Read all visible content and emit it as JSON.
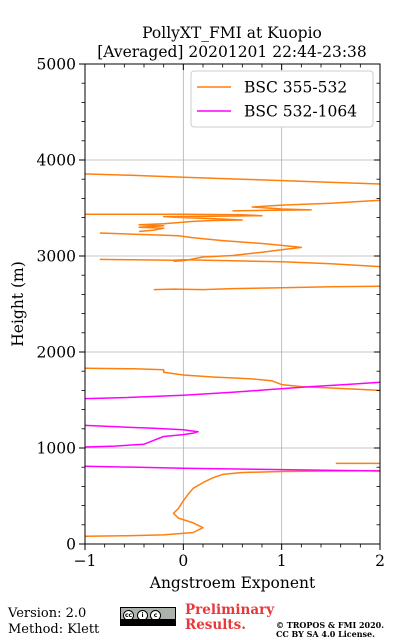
{
  "title": {
    "line1": "PollyXT_FMI at Kuopio",
    "line2": "[Averaged] 20201201 22:44-23:38"
  },
  "footer": {
    "version": "Version: 2.0",
    "method": "Method: Klett",
    "preliminary_line1": "Preliminary",
    "preliminary_line2": "Results.",
    "copyright_line1": "© TROPOS & FMI 2020.",
    "copyright_line2": "CC BY SA 4.0 License.",
    "badge_icon": "cc-by-sa-license-icon"
  },
  "colors": {
    "bsc_355_532": "#ff7f0e",
    "bsc_532_1064": "#ff00ff",
    "grid": "#b0b0b0",
    "preliminary": "#e8383b"
  },
  "chart_data": {
    "type": "line",
    "xlabel": "Angstroem Exponent",
    "ylabel": "Height (m)",
    "xlim": [
      -1,
      2
    ],
    "ylim": [
      0,
      5000
    ],
    "xticks": [
      -1,
      0,
      1,
      2
    ],
    "yticks": [
      0,
      1000,
      2000,
      3000,
      4000,
      5000
    ],
    "xtick_labels": [
      "−1",
      "0",
      "1",
      "2"
    ],
    "ytick_labels": [
      "0",
      "1000",
      "2000",
      "3000",
      "4000",
      "5000"
    ],
    "grid": true,
    "legend_position": "top-right",
    "series": [
      {
        "name": "BSC 355-532",
        "color": "#ff7f0e",
        "segments": [
          [
            [
              -1.0,
              80
            ],
            [
              -0.6,
              85
            ],
            [
              -0.2,
              95
            ],
            [
              0.1,
              120
            ],
            [
              0.2,
              170
            ],
            [
              0.1,
              220
            ],
            [
              -0.05,
              270
            ],
            [
              -0.1,
              320
            ],
            [
              -0.05,
              370
            ],
            [
              0.0,
              450
            ],
            [
              0.05,
              520
            ],
            [
              0.1,
              580
            ],
            [
              0.2,
              640
            ],
            [
              0.3,
              690
            ],
            [
              0.4,
              725
            ],
            [
              0.6,
              745
            ],
            [
              1.0,
              755
            ],
            [
              1.5,
              760
            ],
            [
              2.0,
              765
            ]
          ],
          [
            [
              1.55,
              840
            ],
            [
              2.0,
              840
            ]
          ],
          [
            [
              2.0,
              1600
            ],
            [
              1.8,
              1610
            ],
            [
              1.2,
              1640
            ],
            [
              1.0,
              1660
            ],
            [
              0.9,
              1700
            ],
            [
              0.7,
              1720
            ],
            [
              0.3,
              1740
            ],
            [
              0.0,
              1760
            ],
            [
              -0.2,
              1790
            ],
            [
              -0.2,
              1815
            ],
            [
              -0.5,
              1825
            ],
            [
              -1.0,
              1830
            ]
          ],
          [
            [
              -0.3,
              2650
            ],
            [
              -0.1,
              2655
            ],
            [
              0.2,
              2650
            ],
            [
              0.35,
              2655
            ],
            [
              0.5,
              2660
            ],
            [
              1.0,
              2670
            ],
            [
              1.5,
              2680
            ],
            [
              2.0,
              2685
            ]
          ],
          [
            [
              2.0,
              2890
            ],
            [
              1.5,
              2920
            ],
            [
              1.0,
              2940
            ],
            [
              0.5,
              2950
            ],
            [
              0.0,
              2960
            ],
            [
              -0.1,
              2955
            ],
            [
              -0.5,
              2960
            ],
            [
              -0.85,
              2965
            ]
          ],
          [
            [
              -0.1,
              2945
            ],
            [
              0.0,
              2950
            ],
            [
              0.2,
              2990
            ],
            [
              0.5,
              3005
            ],
            [
              0.8,
              3040
            ],
            [
              1.0,
              3065
            ],
            [
              1.2,
              3090
            ],
            [
              1.0,
              3110
            ],
            [
              0.8,
              3130
            ],
            [
              0.4,
              3160
            ],
            [
              0.1,
              3190
            ],
            [
              -0.05,
              3210
            ],
            [
              -0.3,
              3220
            ],
            [
              -0.6,
              3230
            ],
            [
              -0.85,
              3240
            ]
          ],
          [
            [
              -0.45,
              3255
            ],
            [
              -0.3,
              3270
            ],
            [
              -0.2,
              3290
            ],
            [
              -0.45,
              3300
            ],
            [
              -0.2,
              3315
            ],
            [
              -0.45,
              3325
            ],
            [
              -0.2,
              3335
            ],
            [
              0.1,
              3360
            ],
            [
              0.3,
              3370
            ],
            [
              0.6,
              3375
            ],
            [
              0.3,
              3390
            ],
            [
              0.0,
              3400
            ],
            [
              -0.2,
              3410
            ],
            [
              0.3,
              3415
            ],
            [
              0.8,
              3420
            ],
            [
              0.6,
              3430
            ],
            [
              0.0,
              3435
            ],
            [
              -0.6,
              3435
            ],
            [
              -1.0,
              3435
            ]
          ],
          [
            [
              0.5,
              3470
            ],
            [
              0.8,
              3475
            ],
            [
              1.3,
              3480
            ],
            [
              1.0,
              3490
            ],
            [
              0.7,
              3510
            ],
            [
              1.0,
              3530
            ],
            [
              1.5,
              3550
            ],
            [
              2.0,
              3580
            ]
          ],
          [
            [
              2.0,
              3750
            ],
            [
              1.7,
              3760
            ],
            [
              1.3,
              3775
            ],
            [
              0.6,
              3800
            ],
            [
              0.0,
              3820
            ],
            [
              -0.5,
              3840
            ],
            [
              -1.0,
              3855
            ]
          ]
        ]
      },
      {
        "name": "BSC 532-1064",
        "color": "#ff00ff",
        "segments": [
          [
            [
              -1.0,
              810
            ],
            [
              0.0,
              790
            ],
            [
              1.0,
              775
            ],
            [
              2.0,
              760
            ]
          ],
          [
            [
              -1.0,
              1010
            ],
            [
              -0.7,
              1020
            ],
            [
              -0.4,
              1040
            ],
            [
              -0.3,
              1080
            ],
            [
              -0.2,
              1120
            ],
            [
              0.0,
              1140
            ],
            [
              0.1,
              1155
            ],
            [
              0.15,
              1170
            ],
            [
              0.0,
              1190
            ],
            [
              -0.3,
              1205
            ],
            [
              -0.65,
              1220
            ],
            [
              -1.0,
              1235
            ]
          ],
          [
            [
              -1.0,
              1515
            ],
            [
              -0.6,
              1525
            ],
            [
              0.0,
              1550
            ],
            [
              0.5,
              1580
            ],
            [
              0.9,
              1610
            ],
            [
              1.3,
              1640
            ],
            [
              1.7,
              1665
            ],
            [
              2.0,
              1685
            ]
          ]
        ]
      }
    ]
  }
}
